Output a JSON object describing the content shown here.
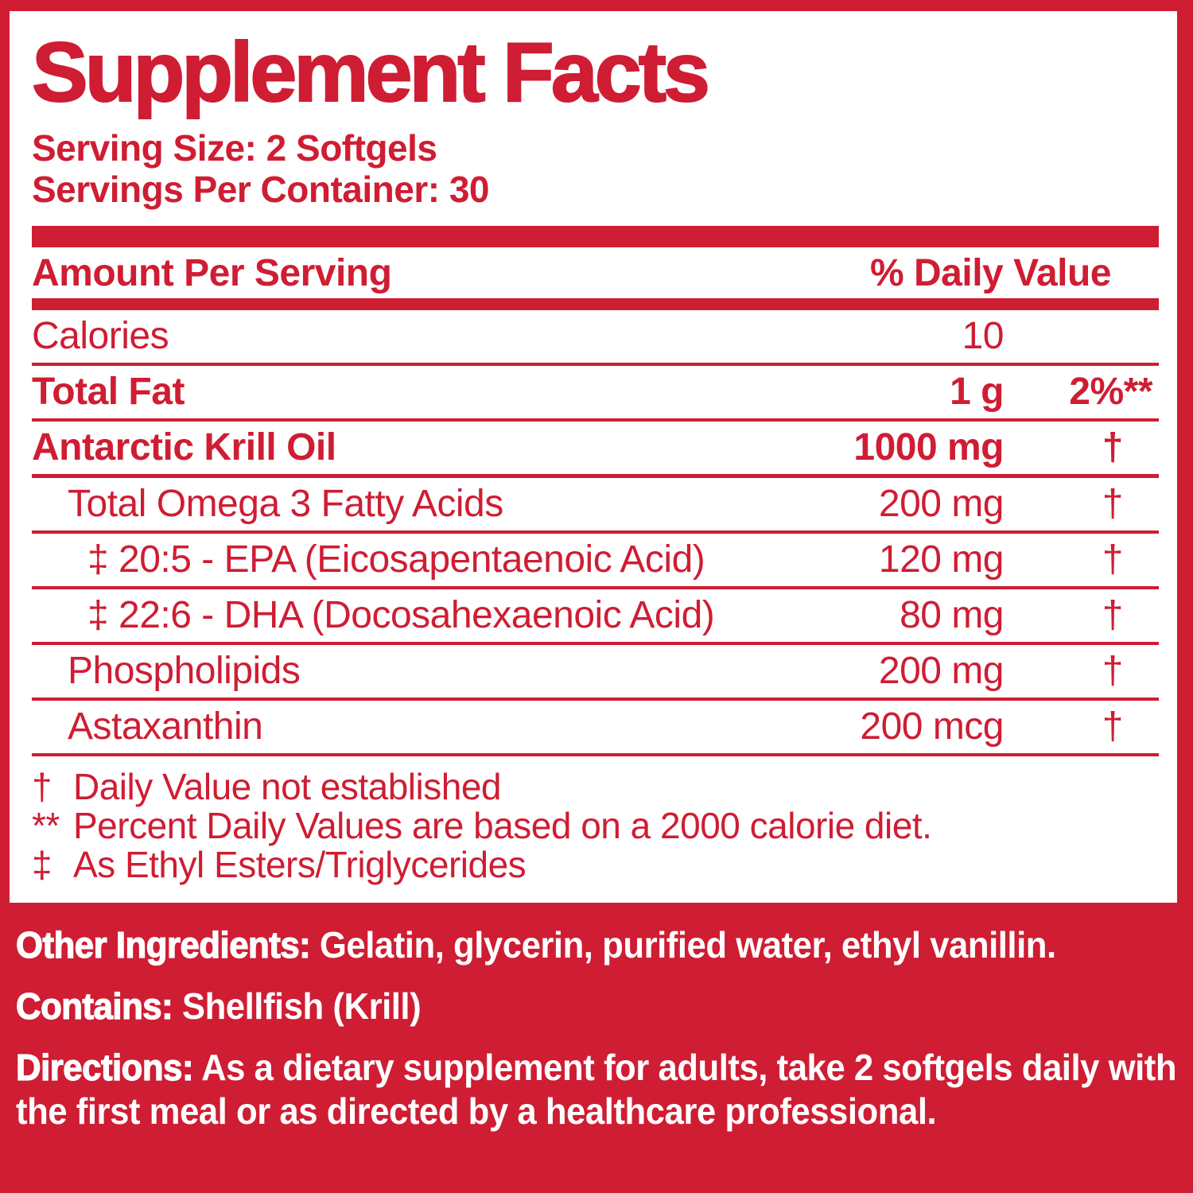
{
  "colors": {
    "red": "#cf1d33",
    "white": "#ffffff"
  },
  "title": "Supplement Facts",
  "serving": {
    "size": "Serving Size: 2 Softgels",
    "per_container": "Servings Per Container: 30"
  },
  "table": {
    "header": {
      "left": "Amount Per Serving",
      "right": "% Daily Value"
    },
    "rows": [
      {
        "name": "Calories",
        "amount": "10",
        "dv": "",
        "bold": false,
        "indent": 0,
        "dagger": false,
        "thick": false
      },
      {
        "name": "Total Fat",
        "amount": "1 g",
        "dv": "2%**",
        "bold": true,
        "indent": 0,
        "dagger": false,
        "thick": false
      },
      {
        "name": "Antarctic Krill Oil",
        "amount": "1000 mg",
        "dv": "†",
        "bold": true,
        "indent": 0,
        "dagger": true,
        "thick": true
      },
      {
        "name": "Total Omega 3 Fatty Acids",
        "amount": "200 mg",
        "dv": "†",
        "bold": false,
        "indent": 1,
        "dagger": true,
        "thick": false
      },
      {
        "name": "‡ 20:5 - EPA (Eicosapentaenoic Acid)",
        "amount": "120 mg",
        "dv": "†",
        "bold": false,
        "indent": 2,
        "dagger": true,
        "thick": false
      },
      {
        "name": "‡ 22:6 - DHA (Docosahexaenoic Acid)",
        "amount": "80 mg",
        "dv": "†",
        "bold": false,
        "indent": 2,
        "dagger": true,
        "thick": false
      },
      {
        "name": "Phospholipids",
        "amount": "200 mg",
        "dv": "†",
        "bold": false,
        "indent": 1,
        "dagger": true,
        "thick": false
      },
      {
        "name": "Astaxanthin",
        "amount": "200 mcg",
        "dv": "†",
        "bold": false,
        "indent": 1,
        "dagger": true,
        "thick": false
      }
    ]
  },
  "footnotes": [
    {
      "symbol": "†",
      "text": "Daily Value not established"
    },
    {
      "symbol": "**",
      "text": "Percent Daily Values are based on a 2000 calorie diet."
    },
    {
      "symbol": "‡",
      "text": "As Ethyl Esters/Triglycerides"
    }
  ],
  "bottom_lines": [
    {
      "label": "Other Ingredients:",
      "text": "Gelatin, glycerin, purified water, ethyl vanillin."
    },
    {
      "label": "Contains:",
      "text": "Shellfish (Krill)"
    },
    {
      "label": "Directions:",
      "text": "As a dietary supplement for adults, take 2 softgels daily with the first meal or as directed by a healthcare professional."
    }
  ]
}
